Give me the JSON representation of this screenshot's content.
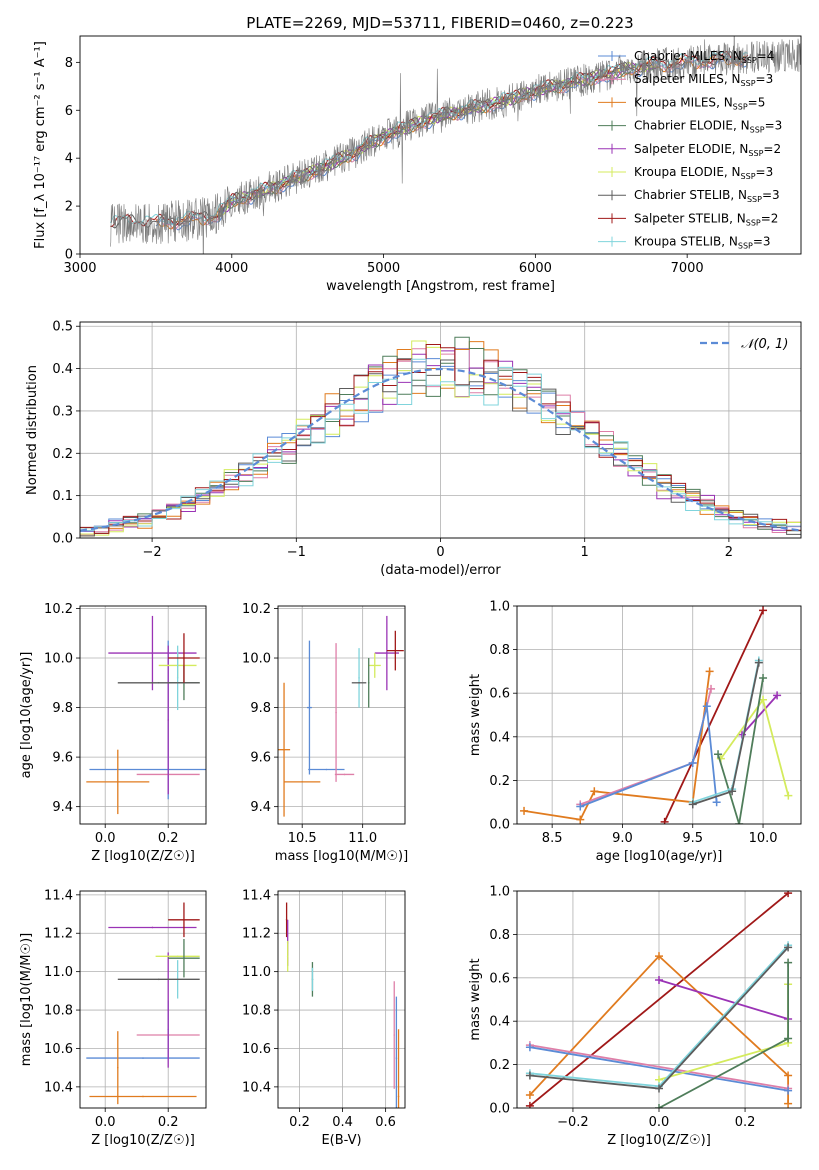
{
  "title": "PLATE=2269, MJD=53711, FIBERID=0460, z=0.223",
  "colors": {
    "Chabrier MILES": "#5b8bd6",
    "Salpeter MILES": "#de7fa8",
    "Kroupa MILES": "#e07b1f",
    "Chabrier ELODIE": "#4f7d5a",
    "Salpeter ELODIE": "#9a33b5",
    "Kroupa ELODIE": "#d4eb5d",
    "Chabrier STELIB": "#5c5c5c",
    "Salpeter STELIB": "#a01818",
    "Kroupa STELIB": "#80d4dc"
  },
  "chart_data": [
    {
      "id": "spectrum",
      "type": "line",
      "title": "PLATE=2269, MJD=53711, FIBERID=0460, z=0.223",
      "xlabel": "wavelength [Angstrom, rest frame]",
      "ylabel": "Flux [f_λ 10⁻¹⁷ erg cm⁻² s⁻¹ A⁻¹]",
      "xlim": [
        3000,
        7750
      ],
      "ylim": [
        0,
        9.1
      ],
      "xticks": [
        3000,
        4000,
        5000,
        6000,
        7000
      ],
      "yticks": [
        0,
        2,
        4,
        6,
        8
      ],
      "grid": false,
      "legend_position": "top-right",
      "observed_range": [
        3200,
        7750
      ],
      "continuum": [
        [
          3200,
          1.2
        ],
        [
          3300,
          1.35
        ],
        [
          3500,
          1.3
        ],
        [
          3700,
          1.4
        ],
        [
          3900,
          1.6
        ],
        [
          4000,
          2.2
        ],
        [
          4200,
          2.6
        ],
        [
          4400,
          3.1
        ],
        [
          4600,
          3.6
        ],
        [
          4800,
          4.2
        ],
        [
          5000,
          4.9
        ],
        [
          5200,
          5.4
        ],
        [
          5400,
          5.8
        ],
        [
          5600,
          6.1
        ],
        [
          5800,
          6.4
        ],
        [
          6000,
          6.8
        ],
        [
          6200,
          7.1
        ],
        [
          6400,
          7.4
        ],
        [
          6600,
          7.7
        ],
        [
          6800,
          7.9
        ],
        [
          7000,
          8.0
        ],
        [
          7200,
          8.1
        ],
        [
          7400,
          8.2
        ],
        [
          7750,
          8.3
        ]
      ],
      "series": [
        {
          "name": "Chabrier MILES",
          "n_ssp": "4",
          "start": 3500,
          "end": 7400
        },
        {
          "name": "Salpeter MILES",
          "n_ssp": "3",
          "start": 3500,
          "end": 7400
        },
        {
          "name": "Kroupa MILES",
          "n_ssp": "5",
          "start": 3500,
          "end": 7400
        },
        {
          "name": "Chabrier ELODIE",
          "n_ssp": "3",
          "start": 3900,
          "end": 6800
        },
        {
          "name": "Salpeter ELODIE",
          "n_ssp": "2",
          "start": 3900,
          "end": 6800
        },
        {
          "name": "Kroupa ELODIE",
          "n_ssp": "3",
          "start": 3900,
          "end": 6800
        },
        {
          "name": "Chabrier STELIB",
          "n_ssp": "3",
          "start": 3200,
          "end": 7400
        },
        {
          "name": "Salpeter STELIB",
          "n_ssp": "2",
          "start": 3200,
          "end": 7400
        },
        {
          "name": "Kroupa STELIB",
          "n_ssp": "3",
          "start": 3200,
          "end": 7400
        }
      ]
    },
    {
      "id": "residuals",
      "type": "line",
      "xlabel": "(data-model)/error",
      "ylabel": "Normed distribution",
      "xlim": [
        -2.5,
        2.5
      ],
      "ylim": [
        0,
        0.51
      ],
      "xticks": [
        -2,
        -1,
        0,
        1,
        2
      ],
      "yticks": [
        0.0,
        0.1,
        0.2,
        0.3,
        0.4,
        0.5
      ],
      "grid": true,
      "legend_position": "top-right",
      "reference": {
        "name": "𝒩(0, 1)",
        "mean": 0,
        "sigma": 1
      },
      "bin_width": 0.1
    },
    {
      "id": "age_vs_Z",
      "type": "scatter",
      "xlabel": "Z [log10(Z/Z☉)]",
      "ylabel": "age  [log10(age/yr)]",
      "xlim": [
        -0.08,
        0.32
      ],
      "ylim": [
        9.33,
        10.21
      ],
      "xticks": [
        0.0,
        0.2
      ],
      "yticks": [
        9.4,
        9.6,
        9.8,
        10.0,
        10.2
      ],
      "points": [
        {
          "series": "Chabrier MILES",
          "x": 0.2,
          "xerr": 0.25,
          "y": 9.55,
          "yerr": 0
        },
        {
          "series": "Chabrier MILES",
          "x": 0.2,
          "xerr": 0,
          "y": 9.75,
          "yerr": 0.32
        },
        {
          "series": "Salpeter MILES",
          "x": 0.2,
          "xerr": 0.1,
          "y": 9.53,
          "yerr": 0
        },
        {
          "series": "Kroupa MILES",
          "x": 0.04,
          "xerr": 0.1,
          "y": 9.5,
          "yerr": 0.13
        },
        {
          "series": "Salpeter ELODIE",
          "x": 0.15,
          "xerr": 0.14,
          "y": 10.02,
          "yerr": 0.15
        },
        {
          "series": "Salpeter ELODIE",
          "x": 0.2,
          "xerr": 0,
          "y": 9.75,
          "yerr": 0.3
        },
        {
          "series": "Kroupa ELODIE",
          "x": 0.23,
          "xerr": 0.06,
          "y": 9.97,
          "yerr": 0.05
        },
        {
          "series": "Chabrier ELODIE",
          "x": 0.25,
          "xerr": 0.05,
          "y": 9.9,
          "yerr": 0.07
        },
        {
          "series": "Kroupa STELIB",
          "x": 0.23,
          "xerr": 0,
          "y": 9.92,
          "yerr": 0.13
        },
        {
          "series": "Chabrier STELIB",
          "x": 0.17,
          "xerr": 0.13,
          "y": 9.9,
          "yerr": 0
        },
        {
          "series": "Salpeter STELIB",
          "x": 0.25,
          "xerr": 0.05,
          "y": 10.0,
          "yerr": 0.1
        }
      ]
    },
    {
      "id": "age_vs_mass",
      "type": "scatter",
      "xlabel": "mass [log10(M/M☉)]",
      "ylabel": "",
      "xlim": [
        10.3,
        11.35
      ],
      "ylim": [
        9.33,
        10.21
      ],
      "xticks": [
        10.5,
        11.0
      ],
      "yticks": [
        9.4,
        9.6,
        9.8,
        10.0,
        10.2
      ],
      "points": [
        {
          "series": "Chabrier MILES",
          "x": 10.56,
          "xerr": 0.02,
          "y": 9.8,
          "yerr": 0.27
        },
        {
          "series": "Chabrier MILES",
          "x": 10.7,
          "xerr": 0.15,
          "y": 9.55,
          "yerr": 0
        },
        {
          "series": "Salpeter MILES",
          "x": 10.78,
          "xerr": 0,
          "y": 9.78,
          "yerr": 0.28
        },
        {
          "series": "Salpeter MILES",
          "x": 10.85,
          "xerr": 0.08,
          "y": 9.53,
          "yerr": 0
        },
        {
          "series": "Kroupa MILES",
          "x": 10.35,
          "xerr": 0.05,
          "y": 9.63,
          "yerr": 0.27
        },
        {
          "series": "Kroupa MILES",
          "x": 10.5,
          "xerr": 0.15,
          "y": 9.5,
          "yerr": 0
        },
        {
          "series": "Salpeter ELODIE",
          "x": 11.2,
          "xerr": 0.1,
          "y": 10.02,
          "yerr": 0.15
        },
        {
          "series": "Kroupa ELODIE",
          "x": 11.1,
          "xerr": 0.05,
          "y": 9.97,
          "yerr": 0.05
        },
        {
          "series": "Chabrier ELODIE",
          "x": 11.05,
          "xerr": 0,
          "y": 9.9,
          "yerr": 0.1
        },
        {
          "series": "Kroupa STELIB",
          "x": 10.97,
          "xerr": 0,
          "y": 9.92,
          "yerr": 0.12
        },
        {
          "series": "Chabrier STELIB",
          "x": 10.97,
          "xerr": 0.06,
          "y": 9.9,
          "yerr": 0
        },
        {
          "series": "Salpeter STELIB",
          "x": 11.27,
          "xerr": 0.07,
          "y": 10.03,
          "yerr": 0.08
        }
      ]
    },
    {
      "id": "weight_vs_age",
      "type": "line",
      "xlabel": "age  [log10(age/yr)]",
      "ylabel": "mass weight",
      "xlim": [
        8.25,
        10.27
      ],
      "ylim": [
        0,
        1
      ],
      "xticks": [
        8.5,
        9.0,
        9.5,
        10.0
      ],
      "yticks": [
        0.0,
        0.2,
        0.4,
        0.6,
        0.8,
        1.0
      ],
      "grid": true,
      "series": [
        {
          "name": "Salpeter STELIB",
          "x": [
            9.3,
            10.0
          ],
          "y": [
            0.01,
            0.98
          ]
        },
        {
          "name": "Kroupa MILES",
          "x": [
            8.3,
            8.7,
            8.8,
            9.5,
            9.62
          ],
          "y": [
            0.06,
            0.02,
            0.15,
            0.1,
            0.7
          ]
        },
        {
          "name": "Salpeter MILES",
          "x": [
            8.7,
            9.5,
            9.63
          ],
          "y": [
            0.09,
            0.28,
            0.62
          ]
        },
        {
          "name": "Chabrier MILES",
          "x": [
            8.7,
            9.5,
            9.6,
            9.67
          ],
          "y": [
            0.08,
            0.28,
            0.54,
            0.1
          ]
        },
        {
          "name": "Salpeter ELODIE",
          "x": [
            9.85,
            10.1
          ],
          "y": [
            0.41,
            0.59
          ]
        },
        {
          "name": "Kroupa ELODIE",
          "x": [
            9.7,
            10.0,
            10.18
          ],
          "y": [
            0.3,
            0.57,
            0.13
          ]
        },
        {
          "name": "Chabrier ELODIE",
          "x": [
            9.68,
            9.83,
            10.0
          ],
          "y": [
            0.32,
            0.0,
            0.67
          ]
        },
        {
          "name": "Kroupa STELIB",
          "x": [
            9.5,
            9.78,
            9.97
          ],
          "y": [
            0.1,
            0.16,
            0.75
          ]
        },
        {
          "name": "Chabrier STELIB",
          "x": [
            9.5,
            9.78,
            9.97
          ],
          "y": [
            0.09,
            0.15,
            0.74
          ]
        }
      ]
    },
    {
      "id": "mass_vs_Z",
      "type": "scatter",
      "xlabel": "Z [log10(Z/Z☉)]",
      "ylabel": "mass [log10(M/M☉)]",
      "xlim": [
        -0.08,
        0.32
      ],
      "ylim": [
        10.29,
        11.42
      ],
      "xticks": [
        0.0,
        0.2
      ],
      "yticks": [
        10.4,
        10.6,
        10.8,
        11.0,
        11.2,
        11.4
      ],
      "points": [
        {
          "series": "Chabrier MILES",
          "x": 0.12,
          "xerr": 0.18,
          "y": 10.55,
          "yerr": 0
        },
        {
          "series": "Chabrier MILES",
          "x": 0.2,
          "xerr": 0,
          "y": 10.7,
          "yerr": 0.15
        },
        {
          "series": "Salpeter MILES",
          "x": 0.2,
          "xerr": 0.1,
          "y": 10.67,
          "yerr": 0
        },
        {
          "series": "Kroupa MILES",
          "x": 0.12,
          "xerr": 0.17,
          "y": 10.35,
          "yerr": 0
        },
        {
          "series": "Kroupa MILES",
          "x": 0.04,
          "xerr": 0,
          "y": 10.5,
          "yerr": 0.19
        },
        {
          "series": "Salpeter ELODIE",
          "x": 0.15,
          "xerr": 0.14,
          "y": 11.23,
          "yerr": 0
        },
        {
          "series": "Salpeter ELODIE",
          "x": 0.2,
          "xerr": 0,
          "y": 10.8,
          "yerr": 0.3
        },
        {
          "series": "Kroupa ELODIE",
          "x": 0.23,
          "xerr": 0.07,
          "y": 11.08,
          "yerr": 0
        },
        {
          "series": "Chabrier ELODIE",
          "x": 0.25,
          "xerr": 0.05,
          "y": 11.07,
          "yerr": 0.1
        },
        {
          "series": "Kroupa STELIB",
          "x": 0.23,
          "xerr": 0,
          "y": 10.96,
          "yerr": 0.1
        },
        {
          "series": "Chabrier STELIB",
          "x": 0.17,
          "xerr": 0.13,
          "y": 10.96,
          "yerr": 0
        },
        {
          "series": "Salpeter STELIB",
          "x": 0.25,
          "xerr": 0.05,
          "y": 11.27,
          "yerr": 0.09
        }
      ]
    },
    {
      "id": "mass_vs_ebv",
      "type": "scatter",
      "xlabel": "E(B-V)",
      "ylabel": "",
      "xlim": [
        0.1,
        0.69
      ],
      "ylim": [
        10.29,
        11.42
      ],
      "xticks": [
        0.2,
        0.4,
        0.6
      ],
      "yticks": [
        10.4,
        10.6,
        10.8,
        11.0,
        11.2,
        11.4
      ],
      "points": [
        {
          "series": "Salpeter STELIB",
          "x": 0.14,
          "xerr": 0,
          "y": 11.27,
          "yerr": 0.09
        },
        {
          "series": "Salpeter ELODIE",
          "x": 0.145,
          "xerr": 0,
          "y": 11.15,
          "yerr": 0.12
        },
        {
          "series": "Kroupa ELODIE",
          "x": 0.145,
          "xerr": 0,
          "y": 11.08,
          "yerr": 0.08
        },
        {
          "series": "Chabrier ELODIE",
          "x": 0.26,
          "xerr": 0,
          "y": 10.96,
          "yerr": 0.09
        },
        {
          "series": "Kroupa STELIB",
          "x": 0.26,
          "xerr": 0,
          "y": 10.96,
          "yerr": 0.06
        },
        {
          "series": "Salpeter MILES",
          "x": 0.64,
          "xerr": 0,
          "y": 10.67,
          "yerr": 0.28
        },
        {
          "series": "Chabrier MILES",
          "x": 0.65,
          "xerr": 0,
          "y": 10.55,
          "yerr": 0.32
        },
        {
          "series": "Kroupa MILES",
          "x": 0.66,
          "xerr": 0,
          "y": 10.35,
          "yerr": 0.35
        }
      ]
    },
    {
      "id": "weight_vs_Z",
      "type": "line",
      "xlabel": "Z [log10(Z/Z☉)]",
      "ylabel": "mass weight",
      "xlim": [
        -0.33,
        0.33
      ],
      "ylim": [
        0,
        1
      ],
      "xticks": [
        -0.2,
        0.0,
        0.2
      ],
      "yticks": [
        0.0,
        0.2,
        0.4,
        0.6,
        0.8,
        1.0
      ],
      "grid": true,
      "series": [
        {
          "name": "Salpeter STELIB",
          "x": [
            -0.3,
            0.3
          ],
          "y": [
            0.01,
            0.99
          ]
        },
        {
          "name": "Kroupa MILES",
          "x": [
            -0.3,
            0.0,
            0.3,
            0.3
          ],
          "y": [
            0.06,
            0.7,
            0.15,
            0.02
          ]
        },
        {
          "name": "Salpeter MILES",
          "x": [
            -0.3,
            0.3
          ],
          "y": [
            0.29,
            0.09
          ]
        },
        {
          "name": "Chabrier MILES",
          "x": [
            -0.3,
            0.3
          ],
          "y": [
            0.28,
            0.08
          ]
        },
        {
          "name": "Salpeter ELODIE",
          "x": [
            0.0,
            0.3
          ],
          "y": [
            0.59,
            0.41
          ]
        },
        {
          "name": "Kroupa ELODIE",
          "x": [
            0.0,
            0.3,
            0.3
          ],
          "y": [
            0.13,
            0.3,
            0.57
          ]
        },
        {
          "name": "Chabrier ELODIE",
          "x": [
            0.0,
            0.3,
            0.3
          ],
          "y": [
            0.0,
            0.32,
            0.67
          ]
        },
        {
          "name": "Kroupa STELIB",
          "x": [
            -0.3,
            0.0,
            0.3
          ],
          "y": [
            0.16,
            0.1,
            0.75
          ]
        },
        {
          "name": "Chabrier STELIB",
          "x": [
            -0.3,
            0.0,
            0.3
          ],
          "y": [
            0.15,
            0.09,
            0.74
          ]
        }
      ]
    }
  ]
}
